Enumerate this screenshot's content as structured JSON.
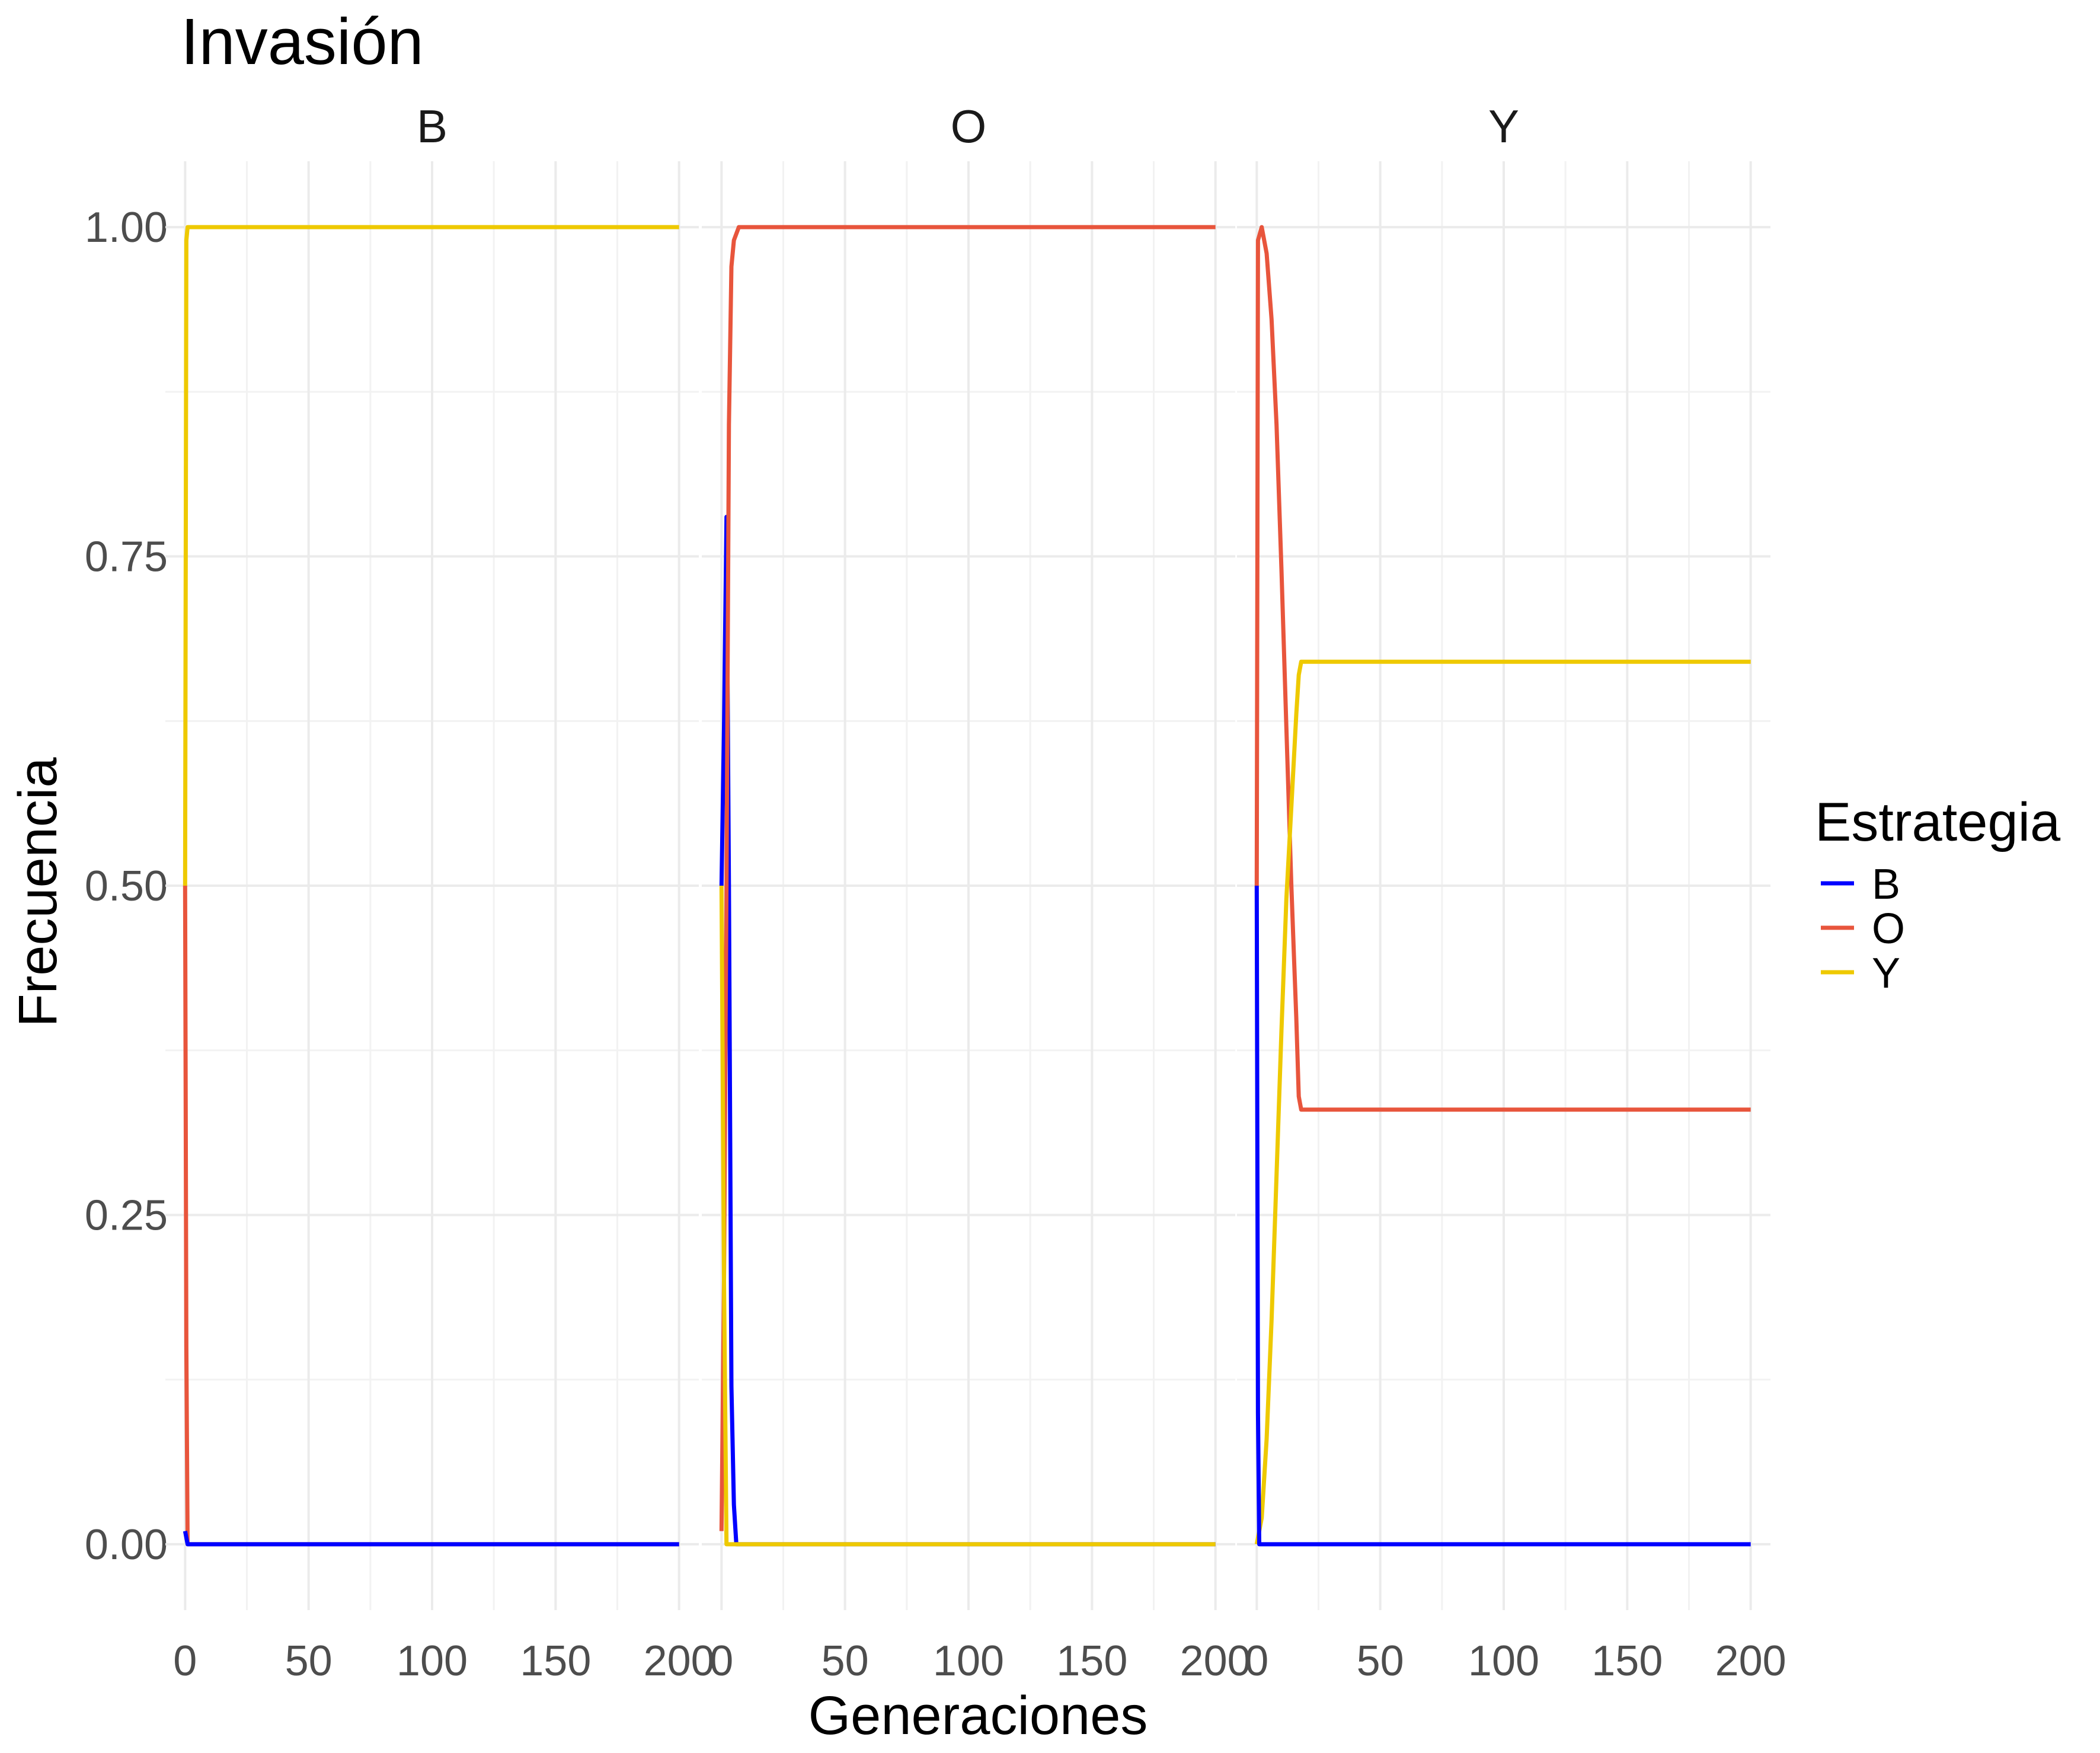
{
  "chart_data": {
    "type": "line",
    "title": "Invasión",
    "xlabel": "Generaciones",
    "ylabel": "Frecuencia",
    "xlim": [
      -8,
      208
    ],
    "ylim": [
      -0.05,
      1.05
    ],
    "x_ticks": [
      0,
      50,
      100,
      150,
      200
    ],
    "x_tick_labels": [
      "0",
      "50",
      "100",
      "150",
      "200"
    ],
    "y_ticks": [
      0,
      0.25,
      0.5,
      0.75,
      1.0
    ],
    "y_tick_labels": [
      "0.00",
      "0.25",
      "0.50",
      "0.75",
      "1.00"
    ],
    "grid": true,
    "legend": {
      "title": "Estrategia",
      "placement": "right",
      "entries": [
        {
          "name": "B",
          "color": "#0000ff"
        },
        {
          "name": "O",
          "color": "#e8553c"
        },
        {
          "name": "Y",
          "color": "#eec900"
        }
      ]
    },
    "panels": [
      {
        "strip": "B",
        "series": [
          {
            "name": "Y",
            "points": [
              [
                0,
                0.5
              ],
              [
                0.5,
                0.99
              ],
              [
                1,
                1.0
              ],
              [
                200,
                1.0
              ]
            ]
          },
          {
            "name": "O",
            "points": [
              [
                0,
                0.5
              ],
              [
                0.5,
                0.15
              ],
              [
                1,
                0.0
              ],
              [
                200,
                0.0
              ]
            ]
          },
          {
            "name": "B",
            "points": [
              [
                0,
                0.01
              ],
              [
                1,
                0.0
              ],
              [
                200,
                0.0
              ]
            ]
          }
        ]
      },
      {
        "strip": "O",
        "series": [
          {
            "name": "B",
            "points": [
              [
                0,
                0.5
              ],
              [
                1,
                0.62
              ],
              [
                2,
                0.78
              ],
              [
                3,
                0.5
              ],
              [
                4,
                0.12
              ],
              [
                5,
                0.03
              ],
              [
                6,
                0.0
              ],
              [
                200,
                0.0
              ]
            ]
          },
          {
            "name": "O",
            "points": [
              [
                0,
                0.01
              ],
              [
                1,
                0.2
              ],
              [
                2,
                0.5
              ],
              [
                3,
                0.85
              ],
              [
                4,
                0.97
              ],
              [
                5,
                0.99
              ],
              [
                7,
                1.0
              ],
              [
                200,
                1.0
              ]
            ]
          },
          {
            "name": "Y",
            "points": [
              [
                0,
                0.5
              ],
              [
                1,
                0.2
              ],
              [
                2,
                0.0
              ],
              [
                200,
                0.0
              ]
            ]
          }
        ]
      },
      {
        "strip": "Y",
        "series": [
          {
            "name": "O",
            "points": [
              [
                0,
                0.5
              ],
              [
                0.5,
                0.99
              ],
              [
                2,
                1.0
              ],
              [
                4,
                0.98
              ],
              [
                6,
                0.93
              ],
              [
                8,
                0.85
              ],
              [
                10,
                0.74
              ],
              [
                12,
                0.62
              ],
              [
                14,
                0.5
              ],
              [
                15,
                0.45
              ],
              [
                16,
                0.4
              ],
              [
                17,
                0.34
              ],
              [
                18,
                0.33
              ],
              [
                200,
                0.33
              ]
            ]
          },
          {
            "name": "Y",
            "points": [
              [
                0,
                0.0
              ],
              [
                2,
                0.02
              ],
              [
                4,
                0.08
              ],
              [
                6,
                0.17
              ],
              [
                8,
                0.28
              ],
              [
                10,
                0.39
              ],
              [
                12,
                0.49
              ],
              [
                14,
                0.56
              ],
              [
                16,
                0.63
              ],
              [
                17,
                0.66
              ],
              [
                18,
                0.67
              ],
              [
                200,
                0.67
              ]
            ]
          },
          {
            "name": "B",
            "points": [
              [
                0,
                0.5
              ],
              [
                0.5,
                0.1
              ],
              [
                1,
                0.0
              ],
              [
                200,
                0.0
              ]
            ]
          }
        ]
      }
    ]
  }
}
